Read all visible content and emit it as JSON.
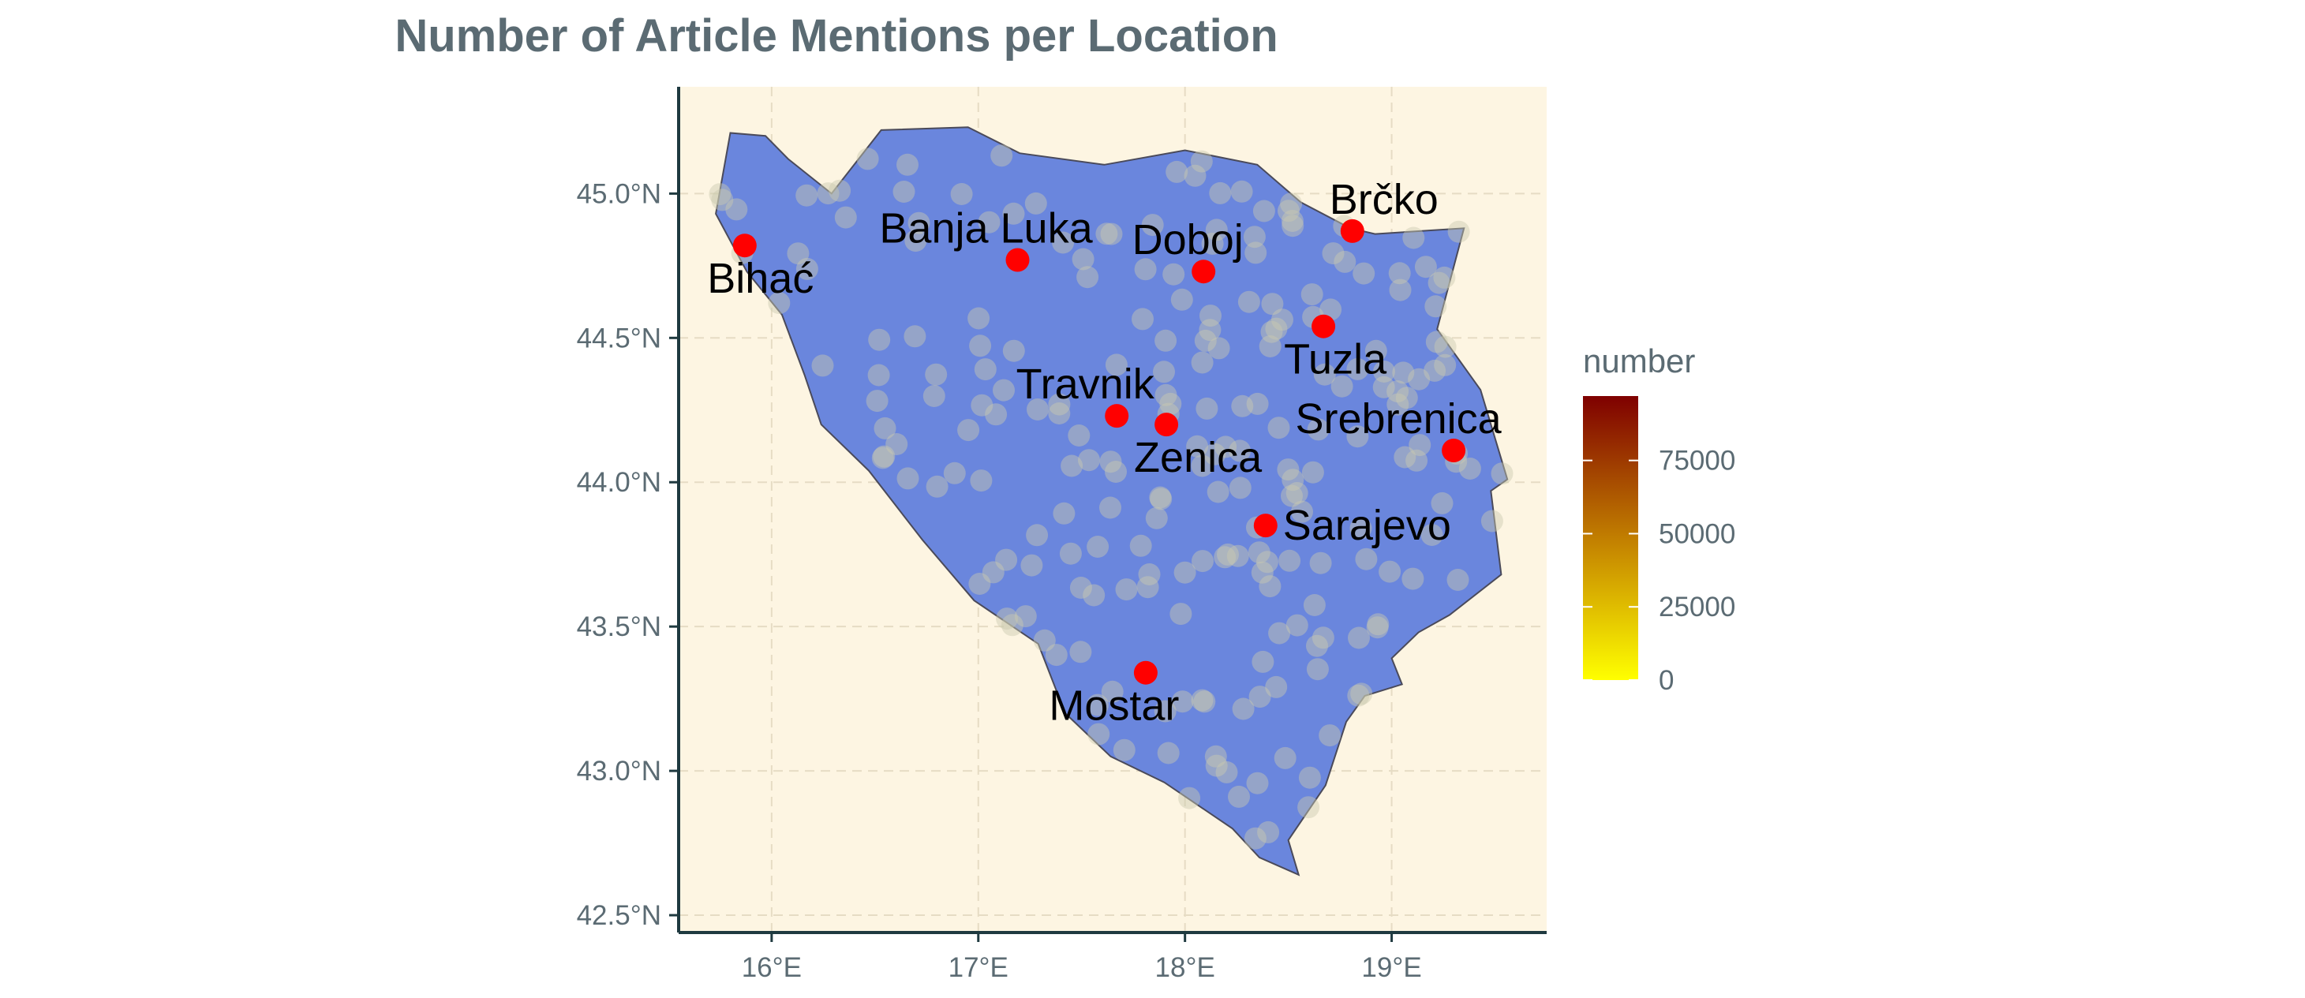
{
  "title": "Number of Article Mentions per Location",
  "colors": {
    "panel_bg": "#fdf5e2",
    "country_fill": "#6a86dd",
    "country_stroke": "#4a4a5a",
    "axis": "#1f3a40",
    "city_point": "#ff0000",
    "mention_point": "#c9c9b0",
    "gradient_high": "#7f0000",
    "gradient_mid": "#c88b00",
    "gradient_low": "#ffff00"
  },
  "axes": {
    "x_ticks": [
      "16°E",
      "17°E",
      "18°E",
      "19°E"
    ],
    "x_tick_values": [
      16,
      17,
      18,
      19
    ],
    "y_ticks": [
      "45.0°N",
      "44.5°N",
      "44.0°N",
      "43.5°N",
      "43.0°N",
      "42.5°N"
    ],
    "y_tick_values": [
      45.0,
      44.5,
      44.0,
      43.5,
      43.0,
      42.5
    ],
    "x_range": [
      15.55,
      19.75
    ],
    "y_range": [
      42.44,
      45.37
    ]
  },
  "legend": {
    "title": "number",
    "ticks": [
      "75000",
      "50000",
      "25000",
      "0"
    ],
    "tick_values": [
      75000,
      50000,
      25000,
      0
    ],
    "max": 97000
  },
  "cities": [
    {
      "name": "Bihać",
      "lon": 15.87,
      "lat": 44.82
    },
    {
      "name": "Banja Luka",
      "lon": 17.19,
      "lat": 44.77
    },
    {
      "name": "Doboj",
      "lon": 18.09,
      "lat": 44.73
    },
    {
      "name": "Brčko",
      "lon": 18.81,
      "lat": 44.87
    },
    {
      "name": "Tuzla",
      "lon": 18.67,
      "lat": 44.54
    },
    {
      "name": "Travnik",
      "lon": 17.67,
      "lat": 44.23
    },
    {
      "name": "Zenica",
      "lon": 17.91,
      "lat": 44.2
    },
    {
      "name": "Srebrenica",
      "lon": 19.3,
      "lat": 44.11
    },
    {
      "name": "Sarajevo",
      "lon": 18.39,
      "lat": 43.85
    },
    {
      "name": "Mostar",
      "lon": 17.81,
      "lat": 43.34
    }
  ],
  "country_outline": [
    [
      15.73,
      44.93
    ],
    [
      15.8,
      45.21
    ],
    [
      15.97,
      45.2
    ],
    [
      16.08,
      45.12
    ],
    [
      16.29,
      45.0
    ],
    [
      16.53,
      45.22
    ],
    [
      16.95,
      45.23
    ],
    [
      17.2,
      45.14
    ],
    [
      17.61,
      45.1
    ],
    [
      18.0,
      45.15
    ],
    [
      18.35,
      45.1
    ],
    [
      18.56,
      44.97
    ],
    [
      18.8,
      44.88
    ],
    [
      18.92,
      44.86
    ],
    [
      19.35,
      44.88
    ],
    [
      19.22,
      44.53
    ],
    [
      19.43,
      44.32
    ],
    [
      19.56,
      44.01
    ],
    [
      19.48,
      43.97
    ],
    [
      19.53,
      43.68
    ],
    [
      19.28,
      43.54
    ],
    [
      19.13,
      43.48
    ],
    [
      19.0,
      43.39
    ],
    [
      19.05,
      43.3
    ],
    [
      18.87,
      43.26
    ],
    [
      18.78,
      43.17
    ],
    [
      18.68,
      42.95
    ],
    [
      18.5,
      42.76
    ],
    [
      18.55,
      42.64
    ],
    [
      18.36,
      42.7
    ],
    [
      18.23,
      42.8
    ],
    [
      17.9,
      42.96
    ],
    [
      17.64,
      43.05
    ],
    [
      17.42,
      43.2
    ],
    [
      17.29,
      43.44
    ],
    [
      16.98,
      43.59
    ],
    [
      16.73,
      43.8
    ],
    [
      16.47,
      44.04
    ],
    [
      16.24,
      44.2
    ],
    [
      16.16,
      44.37
    ],
    [
      16.05,
      44.58
    ],
    [
      15.88,
      44.73
    ],
    [
      15.73,
      44.93
    ]
  ]
}
